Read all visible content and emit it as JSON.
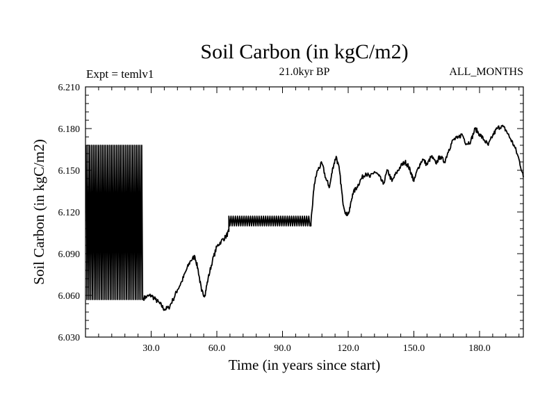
{
  "chart_data": {
    "type": "line",
    "title": "Soil Carbon (in kgC/m2)",
    "subtitle": "21.0kyr BP",
    "annotation_left": "Expt = temlv1",
    "annotation_right": "ALL_MONTHS",
    "xlabel": "Time (in years since start)",
    "ylabel": "Soil Carbon (in kgC/m2)",
    "xlim": [
      0,
      200
    ],
    "ylim": [
      6.03,
      6.21
    ],
    "x_ticks": [
      30,
      60,
      90,
      120,
      150,
      180
    ],
    "x_tick_labels": [
      "30.0",
      "60.0",
      "90.0",
      "120.0",
      "150.0",
      "180.0"
    ],
    "y_ticks": [
      6.03,
      6.06,
      6.09,
      6.12,
      6.15,
      6.18,
      6.21
    ],
    "y_tick_labels": [
      "6.030",
      "6.060",
      "6.090",
      "6.120",
      "6.150",
      "6.180",
      "6.210"
    ],
    "grid": false,
    "line_color": "#000000",
    "series": [
      {
        "segments": [
          {
            "kind": "oscillation",
            "x_start": 0.3,
            "x_end": 26.5,
            "y_low": 6.057,
            "y_high": 6.168,
            "cycles": 32
          },
          {
            "kind": "line",
            "x": [
              26.5,
              28,
              30,
              32,
              34,
              36,
              38,
              40,
              42,
              44,
              46,
              48,
              50,
              51.5,
              53,
              54.5,
              56,
              58,
              60,
              62,
              64,
              65.5
            ],
            "y": [
              6.058,
              6.059,
              6.06,
              6.057,
              6.054,
              6.05,
              6.051,
              6.057,
              6.064,
              6.07,
              6.078,
              6.085,
              6.088,
              6.078,
              6.063,
              6.06,
              6.072,
              6.085,
              6.095,
              6.099,
              6.102,
              6.106
            ]
          },
          {
            "kind": "oscillation",
            "x_start": 65.5,
            "x_end": 103,
            "y_low": 6.11,
            "y_high": 6.117,
            "cycles": 38
          },
          {
            "kind": "line",
            "x": [
              103,
              104.5,
              106,
              108,
              110,
              111.5,
              113,
              114.5,
              116,
              117.5,
              119,
              120.5,
              122,
              124,
              126,
              128,
              130,
              132,
              134,
              136,
              138,
              140,
              142,
              144,
              146,
              147.5,
              149,
              150,
              152,
              154,
              156,
              158,
              160,
              162,
              164,
              166,
              168,
              170,
              172,
              174,
              176,
              178,
              180,
              182,
              184,
              186,
              188,
              190,
              192,
              194,
              196,
              198,
              200
            ],
            "y": [
              6.112,
              6.14,
              6.15,
              6.155,
              6.143,
              6.138,
              6.152,
              6.16,
              6.15,
              6.128,
              6.118,
              6.12,
              6.133,
              6.138,
              6.144,
              6.148,
              6.145,
              6.149,
              6.146,
              6.14,
              6.15,
              6.142,
              6.148,
              6.153,
              6.156,
              6.153,
              6.147,
              6.142,
              6.152,
              6.158,
              6.154,
              6.16,
              6.155,
              6.16,
              6.156,
              6.165,
              6.172,
              6.173,
              6.176,
              6.169,
              6.171,
              6.18,
              6.176,
              6.172,
              6.168,
              6.175,
              6.18,
              6.182,
              6.179,
              6.173,
              6.167,
              6.158,
              6.145
            ]
          }
        ]
      }
    ]
  }
}
